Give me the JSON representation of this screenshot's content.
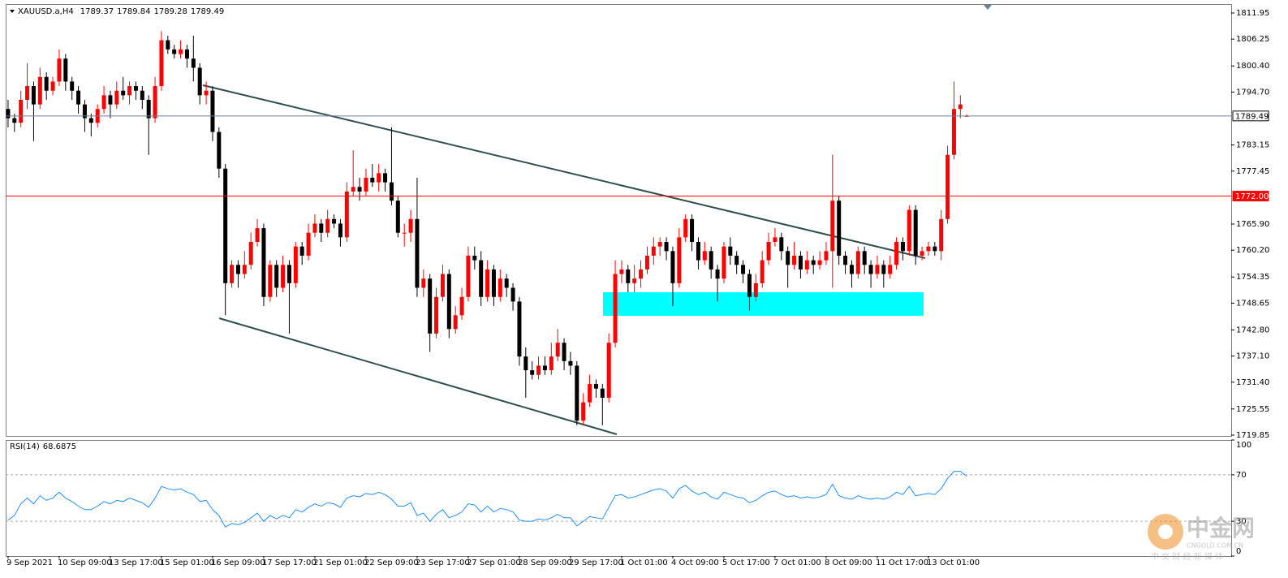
{
  "chart_data": [
    {
      "type": "candlestick",
      "title": "XAUUSD.a,H4",
      "categories": [
        "9 Sep 2021",
        null,
        null,
        null,
        null,
        null,
        null,
        null,
        "10 Sep 09:00",
        null,
        null,
        null,
        null,
        null,
        null,
        null,
        "13 Sep 17:00",
        null,
        null,
        null,
        null,
        null,
        null,
        null,
        "15 Sep 01:00",
        null,
        null,
        null,
        null,
        null,
        null,
        null,
        "16 Sep 09:00",
        null,
        null,
        null,
        null,
        null,
        null,
        null,
        "17 Sep 17:00",
        null,
        null,
        null,
        null,
        null,
        null,
        null,
        "21 Sep 01:00",
        null,
        null,
        null,
        null,
        null,
        null,
        null,
        "22 Sep 09:00",
        null,
        null,
        null,
        null,
        null,
        null,
        null,
        "23 Sep 17:00",
        null,
        null,
        null,
        null,
        null,
        null,
        null,
        "27 Sep 01:00",
        null,
        null,
        null,
        null,
        null,
        null,
        null,
        "28 Sep 09:00",
        null,
        null,
        null,
        null,
        null,
        null,
        null,
        "29 Sep 17:00",
        null,
        null,
        null,
        null,
        null,
        null,
        null,
        "1 Oct 01:00",
        null,
        null,
        null,
        null,
        null,
        null,
        null,
        "4 Oct 09:00",
        null,
        null,
        null,
        null,
        null,
        null,
        null,
        "5 Oct 17:00",
        null,
        null,
        null,
        null,
        null,
        null,
        null,
        "7 Oct 01:00",
        null,
        null,
        null,
        null,
        null,
        null,
        null,
        "8 Oct 09:00",
        null,
        null,
        null,
        null,
        null,
        null,
        null,
        "11 Oct 17:00",
        null,
        null,
        null,
        null,
        null,
        null,
        null,
        "13 Oct 01:00",
        null,
        null,
        null,
        null,
        null,
        null
      ],
      "ohlc": [
        [
          1791,
          1793,
          1787,
          1789
        ],
        [
          1789,
          1790,
          1786,
          1788
        ],
        [
          1788,
          1795,
          1787,
          1793
        ],
        [
          1793,
          1801,
          1791,
          1796
        ],
        [
          1796,
          1797,
          1784,
          1792
        ],
        [
          1792,
          1800,
          1791,
          1798
        ],
        [
          1798,
          1799,
          1793,
          1795
        ],
        [
          1795,
          1798,
          1794,
          1797
        ],
        [
          1797,
          1804,
          1796,
          1802
        ],
        [
          1802,
          1803,
          1795,
          1797
        ],
        [
          1797,
          1798,
          1793,
          1795
        ],
        [
          1795,
          1796,
          1790,
          1792
        ],
        [
          1792,
          1793,
          1786,
          1789
        ],
        [
          1789,
          1790,
          1785,
          1788
        ],
        [
          1788,
          1792,
          1787,
          1791
        ],
        [
          1791,
          1796,
          1790,
          1794
        ],
        [
          1794,
          1795,
          1789,
          1792
        ],
        [
          1792,
          1797,
          1791,
          1795
        ],
        [
          1795,
          1798,
          1793,
          1794
        ],
        [
          1794,
          1797,
          1792,
          1796
        ],
        [
          1796,
          1797,
          1793,
          1795
        ],
        [
          1795,
          1796,
          1791,
          1793
        ],
        [
          1793,
          1794,
          1781,
          1789
        ],
        [
          1789,
          1798,
          1788,
          1796
        ],
        [
          1796,
          1808,
          1795,
          1806
        ],
        [
          1806,
          1807,
          1803,
          1804
        ],
        [
          1804,
          1805,
          1802,
          1803
        ],
        [
          1803,
          1806,
          1802,
          1804
        ],
        [
          1804,
          1805,
          1800,
          1802
        ],
        [
          1802,
          1807,
          1797,
          1800
        ],
        [
          1800,
          1801,
          1792,
          1794
        ],
        [
          1794,
          1797,
          1792,
          1795
        ],
        [
          1795,
          1796,
          1784,
          1786
        ],
        [
          1786,
          1787,
          1776,
          1778
        ],
        [
          1778,
          1779,
          1746,
          1753
        ],
        [
          1753,
          1758,
          1752,
          1757
        ],
        [
          1757,
          1758,
          1752,
          1755
        ],
        [
          1755,
          1760,
          1754,
          1757
        ],
        [
          1757,
          1764,
          1756,
          1762
        ],
        [
          1762,
          1767,
          1761,
          1765
        ],
        [
          1765,
          1766,
          1748,
          1750
        ],
        [
          1750,
          1758,
          1749,
          1757
        ],
        [
          1757,
          1758,
          1750,
          1752
        ],
        [
          1752,
          1759,
          1751,
          1757
        ],
        [
          1757,
          1758,
          1742,
          1753
        ],
        [
          1753,
          1762,
          1752,
          1761
        ],
        [
          1761,
          1762,
          1757,
          1759
        ],
        [
          1759,
          1766,
          1758,
          1764
        ],
        [
          1764,
          1768,
          1763,
          1766
        ],
        [
          1766,
          1767,
          1762,
          1764
        ],
        [
          1764,
          1769,
          1763,
          1767
        ],
        [
          1767,
          1768,
          1765,
          1766
        ],
        [
          1766,
          1767,
          1761,
          1763
        ],
        [
          1763,
          1775,
          1762,
          1773
        ],
        [
          1773,
          1782,
          1772,
          1774
        ],
        [
          1774,
          1776,
          1771,
          1773
        ],
        [
          1773,
          1778,
          1772,
          1776
        ],
        [
          1776,
          1779,
          1774,
          1775
        ],
        [
          1775,
          1779,
          1773,
          1777
        ],
        [
          1777,
          1778,
          1773,
          1775
        ],
        [
          1775,
          1787,
          1770,
          1771
        ],
        [
          1771,
          1772,
          1763,
          1764
        ],
        [
          1764,
          1766,
          1761,
          1764
        ],
        [
          1764,
          1769,
          1762,
          1767
        ],
        [
          1767,
          1776,
          1750,
          1752
        ],
        [
          1752,
          1756,
          1750,
          1754
        ],
        [
          1754,
          1755,
          1738,
          1742
        ],
        [
          1742,
          1752,
          1741,
          1750
        ],
        [
          1750,
          1757,
          1749,
          1755
        ],
        [
          1755,
          1756,
          1741,
          1743
        ],
        [
          1743,
          1748,
          1742,
          1746
        ],
        [
          1746,
          1752,
          1745,
          1750
        ],
        [
          1750,
          1761,
          1749,
          1759
        ],
        [
          1759,
          1761,
          1756,
          1758
        ],
        [
          1758,
          1760,
          1748,
          1750
        ],
        [
          1750,
          1758,
          1749,
          1756
        ],
        [
          1756,
          1757,
          1748,
          1750
        ],
        [
          1750,
          1756,
          1749,
          1754
        ],
        [
          1754,
          1755,
          1750,
          1752
        ],
        [
          1752,
          1753,
          1747,
          1749
        ],
        [
          1749,
          1750,
          1735,
          1737
        ],
        [
          1737,
          1739,
          1728,
          1734
        ],
        [
          1734,
          1736,
          1732,
          1733
        ],
        [
          1733,
          1737,
          1732,
          1735
        ],
        [
          1735,
          1737,
          1733,
          1734
        ],
        [
          1734,
          1740,
          1733,
          1737
        ],
        [
          1737,
          1743,
          1736,
          1740
        ],
        [
          1740,
          1741,
          1734,
          1736
        ],
        [
          1736,
          1738,
          1733,
          1735
        ],
        [
          1735,
          1736,
          1722,
          1723
        ],
        [
          1723,
          1729,
          1722,
          1727
        ],
        [
          1727,
          1733,
          1726,
          1731
        ],
        [
          1731,
          1732,
          1728,
          1730
        ],
        [
          1730,
          1731,
          1722,
          1728
        ],
        [
          1728,
          1742,
          1727,
          1740
        ],
        [
          1740,
          1758,
          1739,
          1755
        ],
        [
          1755,
          1758,
          1753,
          1756
        ],
        [
          1756,
          1757,
          1751,
          1753
        ],
        [
          1753,
          1757,
          1751,
          1754
        ],
        [
          1754,
          1758,
          1752,
          1756
        ],
        [
          1756,
          1761,
          1755,
          1759
        ],
        [
          1759,
          1763,
          1757,
          1761
        ],
        [
          1761,
          1763,
          1759,
          1762
        ],
        [
          1762,
          1763,
          1758,
          1760
        ],
        [
          1760,
          1761,
          1748,
          1753
        ],
        [
          1753,
          1765,
          1752,
          1763
        ],
        [
          1763,
          1768,
          1762,
          1767
        ],
        [
          1767,
          1768,
          1760,
          1762
        ],
        [
          1762,
          1763,
          1756,
          1758
        ],
        [
          1758,
          1762,
          1757,
          1760
        ],
        [
          1760,
          1761,
          1754,
          1756
        ],
        [
          1756,
          1757,
          1749,
          1754
        ],
        [
          1754,
          1762,
          1753,
          1761
        ],
        [
          1761,
          1763,
          1757,
          1759
        ],
        [
          1759,
          1760,
          1755,
          1757
        ],
        [
          1757,
          1758,
          1753,
          1755
        ],
        [
          1755,
          1756,
          1747,
          1750
        ],
        [
          1750,
          1755,
          1749,
          1753
        ],
        [
          1753,
          1760,
          1752,
          1758
        ],
        [
          1758,
          1764,
          1757,
          1762
        ],
        [
          1762,
          1765,
          1761,
          1763
        ],
        [
          1763,
          1764,
          1758,
          1760
        ],
        [
          1760,
          1761,
          1752,
          1757
        ],
        [
          1757,
          1762,
          1756,
          1759
        ],
        [
          1759,
          1760,
          1754,
          1756
        ],
        [
          1756,
          1760,
          1755,
          1758
        ],
        [
          1758,
          1759,
          1755,
          1757
        ],
        [
          1757,
          1760,
          1756,
          1758
        ],
        [
          1758,
          1762,
          1757,
          1760
        ],
        [
          1760,
          1781,
          1752,
          1771
        ],
        [
          1771,
          1772,
          1757,
          1759
        ],
        [
          1759,
          1760,
          1755,
          1757
        ],
        [
          1757,
          1758,
          1752,
          1755
        ],
        [
          1755,
          1761,
          1754,
          1760
        ],
        [
          1760,
          1761,
          1755,
          1757
        ],
        [
          1757,
          1758,
          1752,
          1755
        ],
        [
          1755,
          1759,
          1754,
          1757
        ],
        [
          1757,
          1758,
          1752,
          1755
        ],
        [
          1755,
          1759,
          1754,
          1757
        ],
        [
          1757,
          1763,
          1756,
          1762
        ],
        [
          1762,
          1763,
          1758,
          1760
        ],
        [
          1760,
          1770,
          1759,
          1769
        ],
        [
          1769,
          1770,
          1757,
          1759
        ],
        [
          1759,
          1761,
          1758,
          1760
        ],
        [
          1760,
          1762,
          1759,
          1761
        ],
        [
          1761,
          1762,
          1759,
          1760
        ],
        [
          1760,
          1769,
          1758,
          1767
        ],
        [
          1767,
          1783,
          1766,
          1781
        ],
        [
          1781,
          1797,
          1780,
          1791
        ],
        [
          1791,
          1794,
          1789,
          1792
        ],
        [
          1789.37,
          1789.84,
          1789.28,
          1789.49
        ]
      ],
      "up_color": "#ff0000",
      "down_color": "#000000",
      "ylim": [
        1719.67,
        1813.9
      ],
      "yticks": [
        1811.95,
        1806.25,
        {
          "value": 1800.4,
          "label": "1800.40"
        },
        {
          "value": 1794.7,
          "label": "1794.70"
        },
        1783.15,
        1777.45,
        {
          "value": 1765.9,
          "label": "1765.90"
        },
        {
          "value": 1760.2,
          "label": "1760.20"
        },
        1754.35,
        1748.65,
        {
          "value": 1742.8,
          "label": "1742.80"
        },
        {
          "value": 1737.1,
          "label": "1737.10"
        },
        {
          "value": 1731.4,
          "label": "1731.40"
        },
        1725.55,
        1719.85
      ],
      "lines": [
        {
          "value": 1789.49,
          "label": "1789.49",
          "color": "#6d7f99"
        },
        {
          "value": 1772,
          "label": "1772.00",
          "color": "#ff0000"
        }
      ]
    },
    {
      "type": "line",
      "series": [
        {
          "name": "RSI(14)",
          "color": "#1e90ff",
          "values": [
            31,
            35,
            45,
            50,
            45,
            52,
            48,
            50,
            55,
            50,
            47,
            43,
            40,
            40,
            43,
            47,
            45,
            48,
            47,
            50,
            48,
            46,
            42,
            50,
            60,
            58,
            57,
            58,
            55,
            53,
            47,
            48,
            40,
            35,
            25,
            28,
            27,
            29,
            33,
            37,
            30,
            35,
            32,
            35,
            33,
            40,
            38,
            42,
            45,
            43,
            46,
            45,
            42,
            50,
            52,
            51,
            54,
            53,
            55,
            53,
            49,
            43,
            43,
            46,
            35,
            37,
            30,
            36,
            40,
            33,
            35,
            38,
            45,
            44,
            38,
            43,
            38,
            41,
            40,
            38,
            31,
            30,
            30,
            32,
            31,
            33,
            36,
            33,
            33,
            26,
            30,
            34,
            33,
            32,
            42,
            52,
            53,
            50,
            51,
            53,
            55,
            57,
            58,
            56,
            50,
            58,
            61,
            56,
            53,
            55,
            51,
            49,
            55,
            53,
            51,
            50,
            46,
            48,
            52,
            55,
            56,
            53,
            51,
            52,
            50,
            51,
            50,
            51,
            53,
            62,
            52,
            50,
            49,
            52,
            50,
            49,
            50,
            49,
            51,
            55,
            53,
            60,
            52,
            53,
            54,
            53,
            58,
            67,
            73,
            73,
            68.6875
          ]
        }
      ],
      "ylim": [
        0,
        100
      ],
      "yticks": [
        0,
        30,
        70,
        100
      ],
      "levels": [
        30,
        70
      ]
    }
  ],
  "watermark": {
    "brand": "中金网",
    "domain": "CNGOLD.COM.CN",
    "tagline": "中 文 财 经 新 媒 体"
  }
}
